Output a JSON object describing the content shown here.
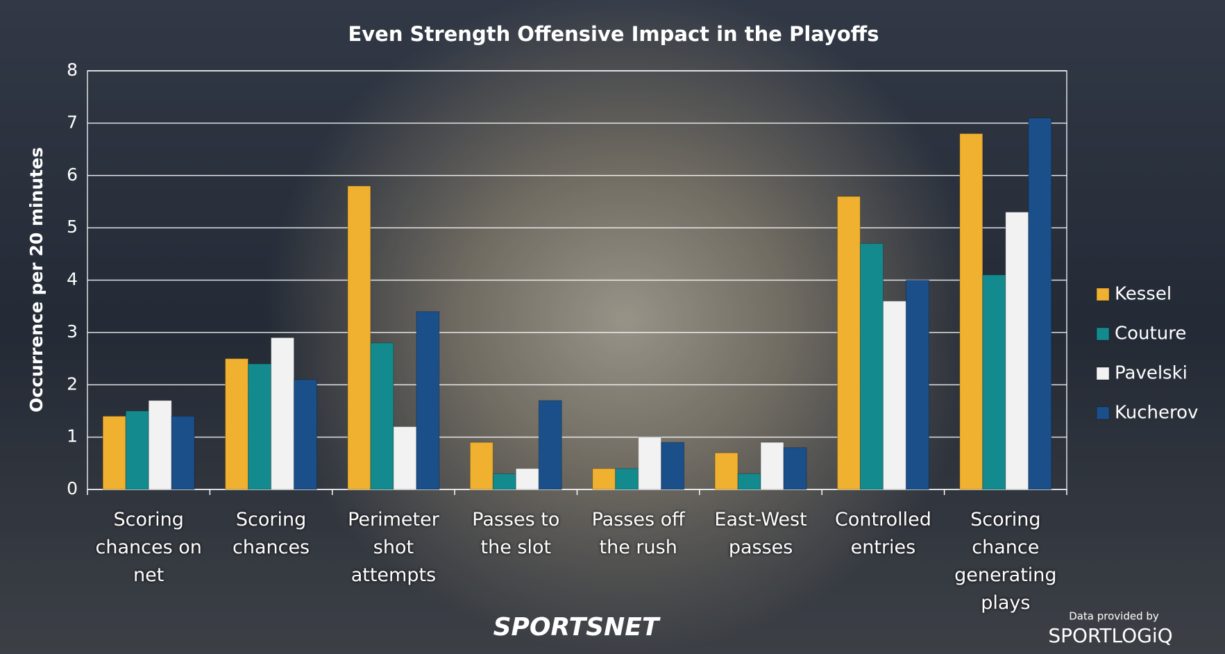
{
  "chart_data": {
    "type": "bar",
    "title": "Even Strength Offensive Impact in the Playoffs",
    "y_label": "Occurrence per 20 minutes",
    "categories": [
      "Scoring chances on net",
      "Scoring chances",
      "Perimeter shot attempts",
      "Passes to the slot",
      "Passes off the rush",
      "East-West passes",
      "Controlled entries",
      "Scoring chance generating plays"
    ],
    "series": [
      {
        "name": "Kessel",
        "color": "#f0b030",
        "values": [
          1.4,
          2.5,
          5.8,
          0.9,
          0.4,
          0.7,
          5.6,
          6.8
        ]
      },
      {
        "name": "Couture",
        "color": "#138a8e",
        "values": [
          1.5,
          2.4,
          2.8,
          0.3,
          0.4,
          0.3,
          4.7,
          4.1
        ]
      },
      {
        "name": "Pavelski",
        "color": "#f2f2f2",
        "values": [
          1.7,
          2.9,
          1.2,
          0.4,
          1.0,
          0.9,
          3.6,
          5.3
        ]
      },
      {
        "name": "Kucherov",
        "color": "#1a4f8a",
        "values": [
          1.4,
          2.1,
          3.4,
          1.7,
          0.9,
          0.8,
          4.0,
          7.1
        ]
      }
    ],
    "ylim": [
      0,
      8
    ],
    "yticks": [
      0,
      1,
      2,
      3,
      4,
      5,
      6,
      7,
      8
    ],
    "grid": true,
    "legend": "right"
  },
  "footer": {
    "brand": "SPORTSNET",
    "credit": "Data provided by",
    "provider": "SPORTLOGiQ"
  }
}
